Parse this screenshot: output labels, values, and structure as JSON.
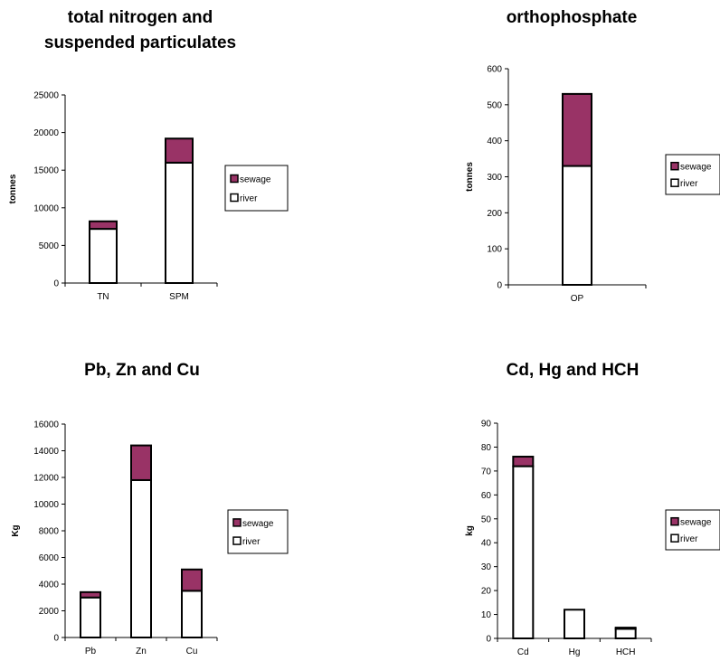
{
  "colors": {
    "sewage": "#993366",
    "river": "#ffffff",
    "outline": "#000000"
  },
  "chart_data": [
    {
      "type": "bar",
      "stacked": true,
      "title": [
        "total nitrogen  and",
        "suspended particulates"
      ],
      "ylabel": "tonnes",
      "ylim": [
        0,
        25000
      ],
      "ytick_step": 5000,
      "categories": [
        "TN",
        "SPM"
      ],
      "series": [
        {
          "name": "river",
          "values": [
            7200,
            16000
          ]
        },
        {
          "name": "sewage",
          "values": [
            1000,
            3200
          ]
        }
      ],
      "legend": [
        "sewage",
        "river"
      ],
      "legend_position": "right"
    },
    {
      "type": "bar",
      "stacked": true,
      "title": [
        "orthophosphate"
      ],
      "ylabel": "tonnes",
      "ylim": [
        0,
        600
      ],
      "ytick_step": 100,
      "categories": [
        "OP"
      ],
      "series": [
        {
          "name": "river",
          "values": [
            330
          ]
        },
        {
          "name": "sewage",
          "values": [
            200
          ]
        }
      ],
      "legend": [
        "sewage",
        "river"
      ],
      "legend_position": "right"
    },
    {
      "type": "bar",
      "stacked": true,
      "title": [
        "Pb, Zn and Cu"
      ],
      "ylabel": "Kg",
      "ylim": [
        0,
        16000
      ],
      "ytick_step": 2000,
      "categories": [
        "Pb",
        "Zn",
        "Cu"
      ],
      "series": [
        {
          "name": "river",
          "values": [
            3000,
            11800,
            3500
          ]
        },
        {
          "name": "sewage",
          "values": [
            400,
            2600,
            1600
          ]
        }
      ],
      "legend": [
        "sewage",
        "river"
      ],
      "legend_position": "right"
    },
    {
      "type": "bar",
      "stacked": true,
      "title": [
        "Cd, Hg and HCH"
      ],
      "ylabel": "kg",
      "ylim": [
        0,
        90
      ],
      "ytick_step": 10,
      "categories": [
        "Cd",
        "Hg",
        "HCH"
      ],
      "series": [
        {
          "name": "river",
          "values": [
            72,
            12,
            4
          ]
        },
        {
          "name": "sewage",
          "values": [
            4,
            0,
            0.5
          ]
        }
      ],
      "legend": [
        "sewage",
        "river"
      ],
      "legend_position": "right"
    }
  ]
}
